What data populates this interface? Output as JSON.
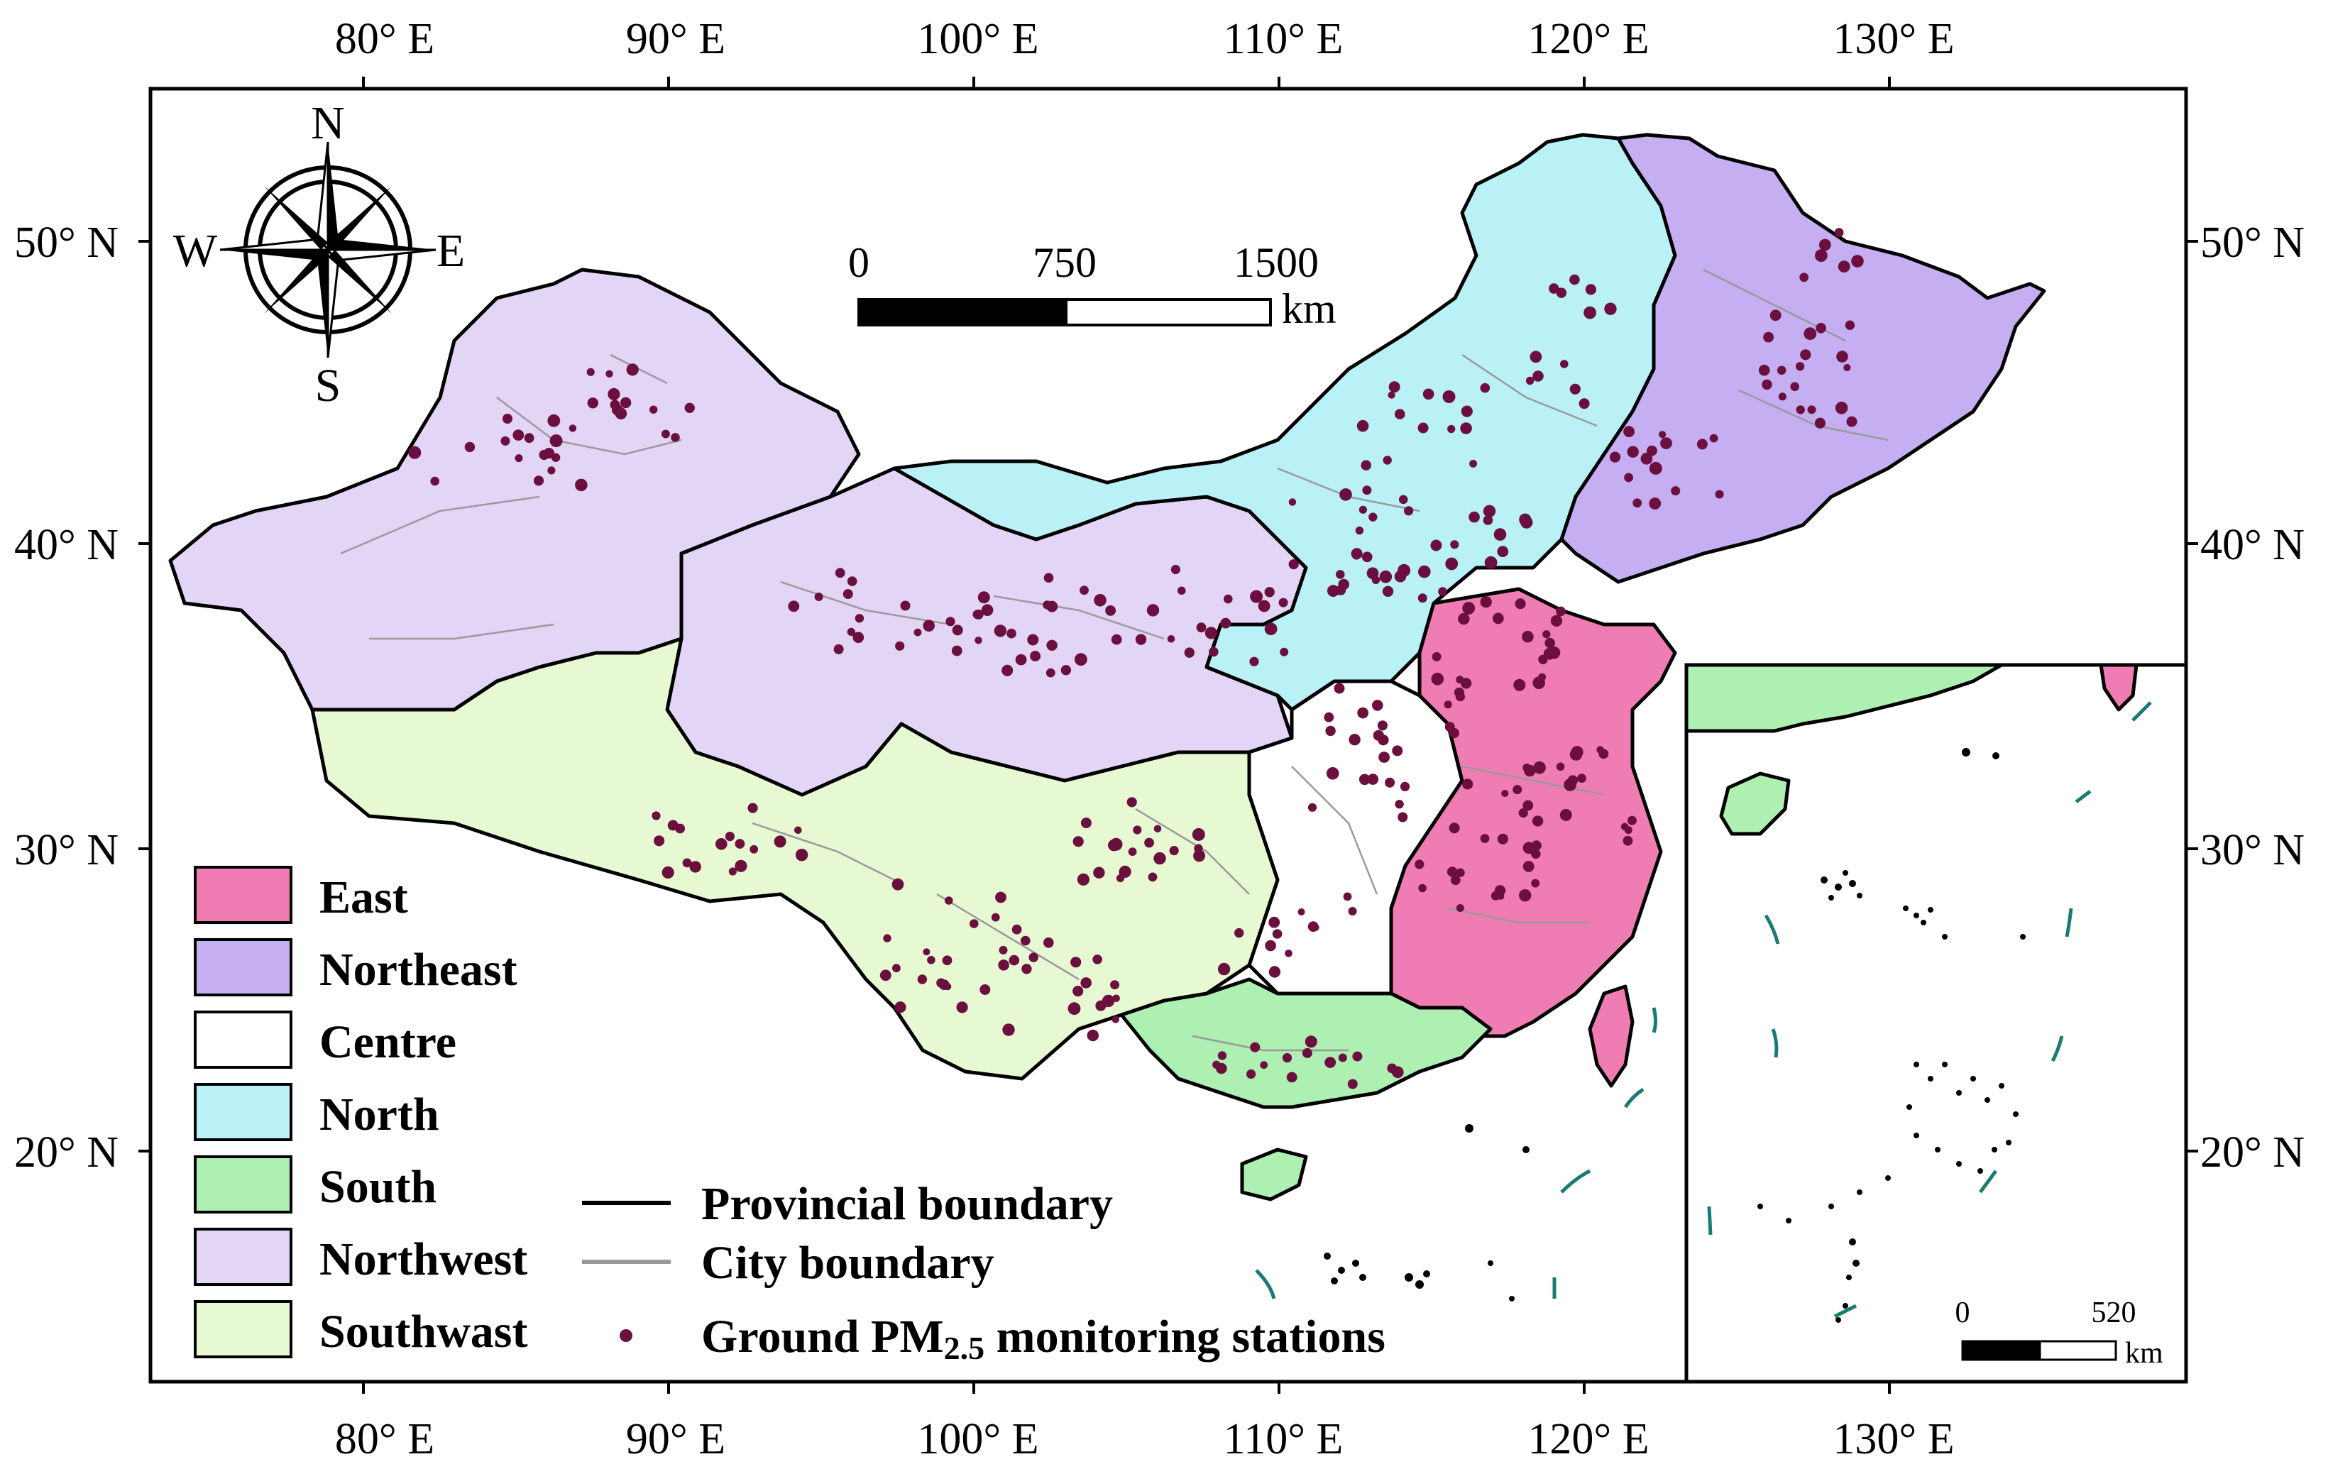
{
  "map": {
    "x_ticks": [
      "80° E",
      "90° E",
      "100° E",
      "110° E",
      "120° E",
      "130° E"
    ],
    "y_ticks": [
      "50° N",
      "40° N",
      "30° N",
      "20° N"
    ],
    "compass": {
      "north": "N",
      "south": "S",
      "east": "E",
      "west": "W"
    },
    "scale_bar": {
      "labels": [
        "0",
        "750",
        "1500"
      ],
      "unit": "km"
    },
    "inset_scale_bar": {
      "labels": [
        "0",
        "520"
      ],
      "unit": "km"
    },
    "regions": [
      {
        "name": "East",
        "color": "#f07cb4"
      },
      {
        "name": "Northeast",
        "color": "#c5aef2"
      },
      {
        "name": "Centre",
        "color": "#ffffff"
      },
      {
        "name": "North",
        "color": "#b9f1f7"
      },
      {
        "name": "South",
        "color": "#adf0b2"
      },
      {
        "name": "Northwest",
        "color": "#e2d5f6"
      },
      {
        "name": "Southwast",
        "color": "#e6f9d2"
      }
    ],
    "boundary_legend": {
      "provincial": "Provincial boundary",
      "city": "City boundary",
      "stations_prefix": "Ground PM",
      "stations_sub": "2.5",
      "stations_suffix": " monitoring stations"
    },
    "colors": {
      "station_dot": "#6b0f3f",
      "city_line": "#9a9a9a",
      "dash_line": "#1a7a74"
    }
  }
}
